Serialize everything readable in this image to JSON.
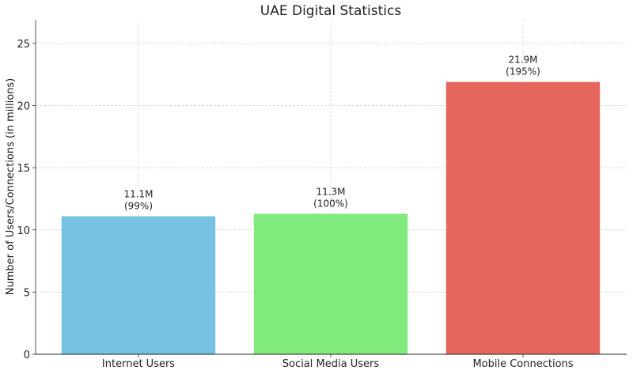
{
  "chart_data": {
    "type": "bar",
    "title": "UAE Digital Statistics",
    "xlabel": "",
    "ylabel": "Number of Users/Connections (in millions)",
    "categories": [
      "Internet Users",
      "Social Media Users",
      "Mobile Connections"
    ],
    "values": [
      11.1,
      11.3,
      21.9
    ],
    "data_labels": [
      [
        "11.1M",
        "(99%)"
      ],
      [
        "11.3M",
        "(100%)"
      ],
      [
        "21.9M",
        "(195%)"
      ]
    ],
    "colors": [
      "#77c1e3",
      "#80ea7c",
      "#e5675d"
    ],
    "ylim": [
      0,
      26.9
    ],
    "yticks": [
      0,
      5,
      10,
      15,
      20,
      25
    ],
    "grid": true
  }
}
